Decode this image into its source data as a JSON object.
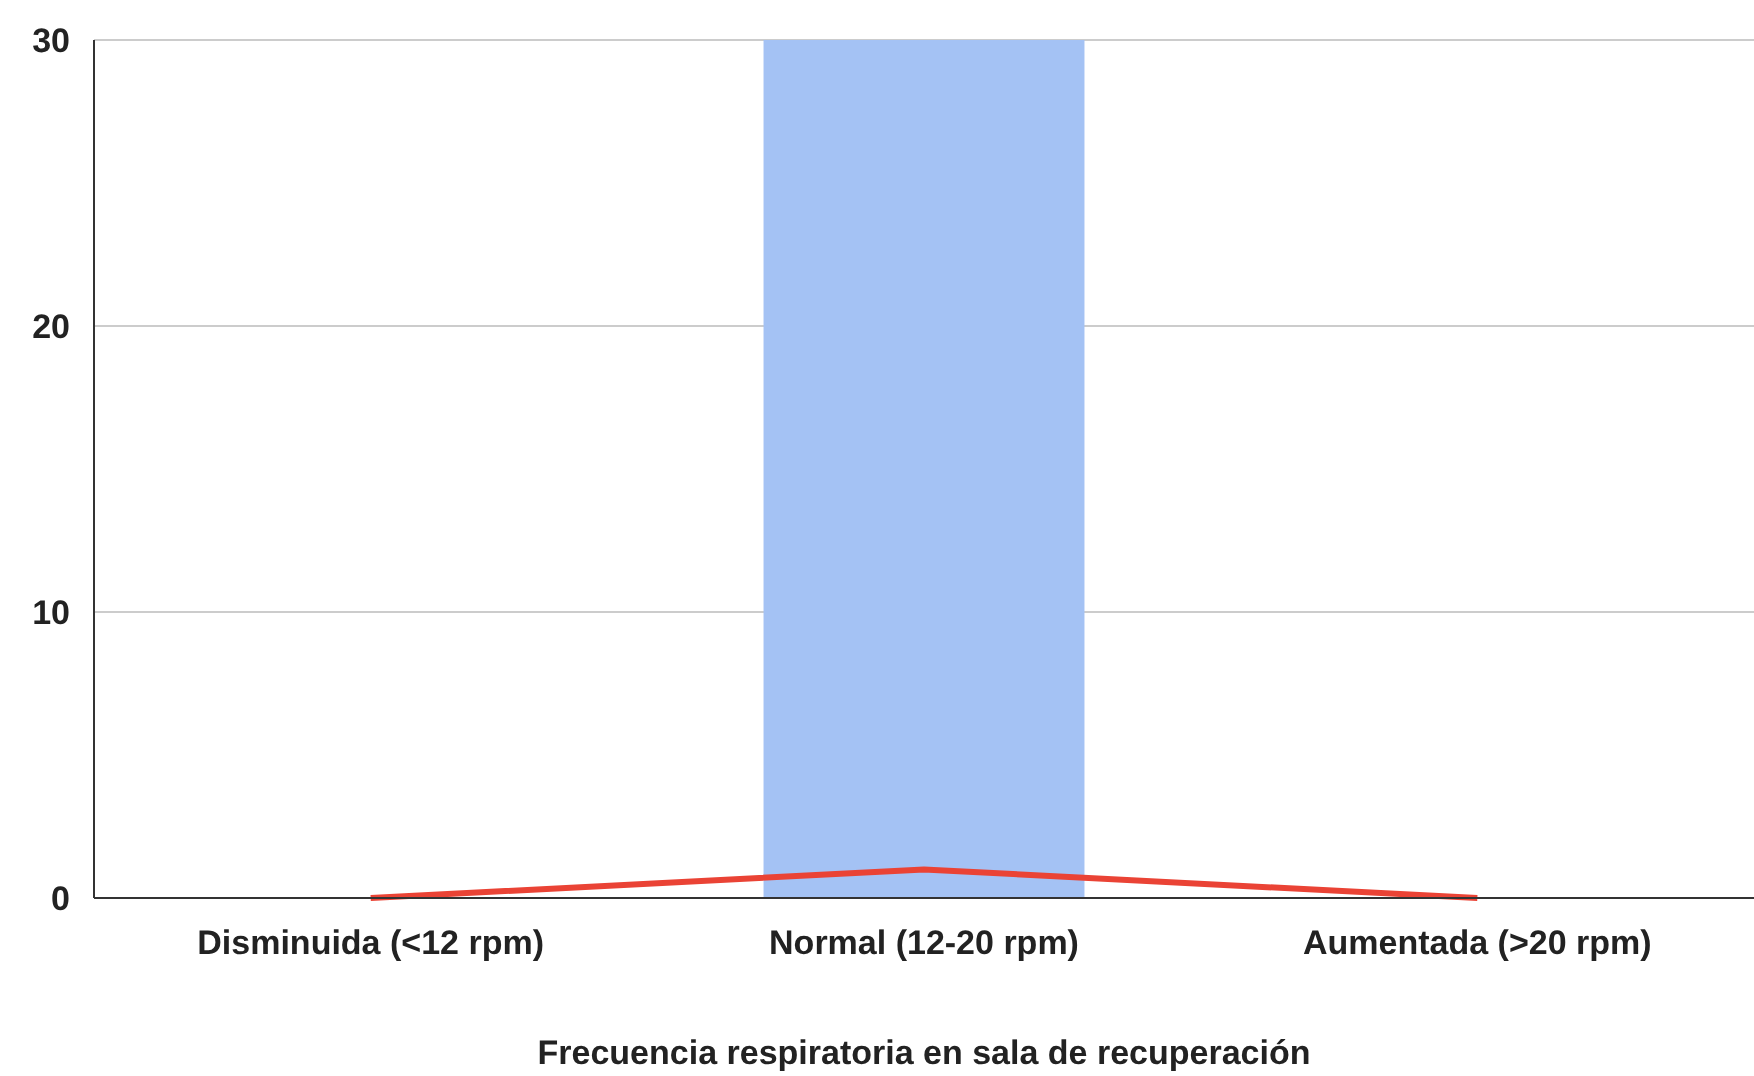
{
  "chart_data": {
    "type": "bar",
    "xlabel": "Frecuencia respiratoria en sala de recuperación",
    "categories": [
      "Disminuida (<12 rpm)",
      "Normal (12-20 rpm)",
      "Aumentada (>20 rpm)"
    ],
    "series": [
      {
        "color": "#a4c2f4",
        "values": [
          0,
          30,
          0
        ]
      },
      {
        "type": "line",
        "color": "#ea4335",
        "values": [
          0,
          1,
          0
        ]
      }
    ],
    "ylim": [
      0,
      30
    ],
    "yticks": [
      0,
      10,
      20,
      30
    ],
    "grid": "y",
    "marker": "none"
  }
}
